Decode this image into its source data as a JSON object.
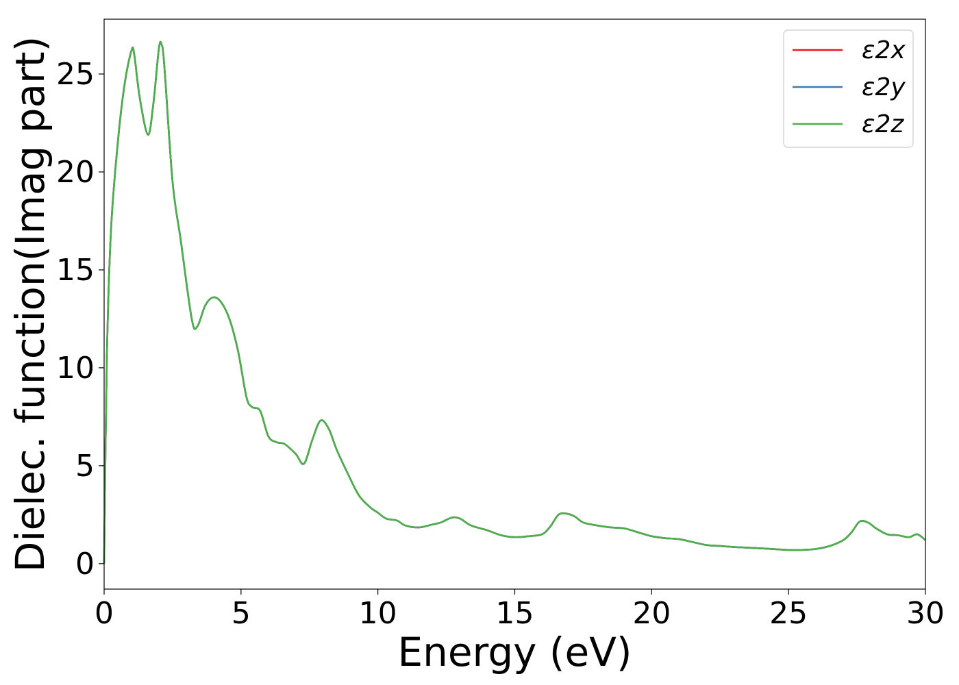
{
  "chart_data": {
    "type": "line",
    "xlabel": "Energy (eV)",
    "ylabel": "Dielec. function(Imag part)",
    "xlim": [
      0,
      30
    ],
    "ylim": [
      -1.3,
      27.8
    ],
    "xticks": [
      0,
      5,
      10,
      15,
      20,
      25,
      30
    ],
    "yticks": [
      0,
      5,
      10,
      15,
      20,
      25
    ],
    "legend_position": "top-right",
    "grid": false,
    "x": [
      0,
      0.1,
      0.25,
      0.5,
      0.75,
      1.0,
      1.1,
      1.3,
      1.6,
      1.8,
      2.0,
      2.1,
      2.2,
      2.5,
      2.8,
      3.2,
      3.4,
      3.7,
      4.0,
      4.3,
      4.6,
      4.9,
      5.2,
      5.4,
      5.7,
      6.0,
      6.3,
      6.6,
      7.0,
      7.3,
      7.6,
      7.9,
      8.2,
      8.5,
      8.9,
      9.3,
      9.7,
      10.0,
      10.3,
      10.7,
      11.0,
      11.5,
      12.0,
      12.3,
      12.7,
      13.0,
      13.4,
      14.0,
      14.5,
      15.0,
      15.5,
      16.0,
      16.3,
      16.6,
      16.9,
      17.2,
      17.5,
      18.0,
      18.5,
      19.0,
      19.5,
      20.0,
      20.5,
      21.0,
      21.5,
      22.0,
      22.5,
      23.0,
      24.0,
      25.0,
      25.5,
      26.0,
      26.5,
      27.0,
      27.3,
      27.6,
      27.9,
      28.2,
      28.6,
      29.0,
      29.4,
      29.7,
      30.0
    ],
    "series": [
      {
        "name": "ε2x",
        "color": "#e41a1c",
        "values": [
          0,
          10.5,
          17.0,
          21.5,
          24.5,
          26.2,
          26.0,
          23.8,
          21.9,
          23.5,
          26.3,
          26.5,
          25.4,
          19.5,
          16.5,
          12.5,
          12.1,
          13.2,
          13.6,
          13.3,
          12.4,
          10.8,
          8.5,
          8.0,
          7.8,
          6.5,
          6.2,
          6.1,
          5.6,
          5.1,
          6.3,
          7.3,
          6.9,
          5.8,
          4.6,
          3.5,
          2.9,
          2.6,
          2.3,
          2.2,
          1.95,
          1.85,
          2.0,
          2.1,
          2.35,
          2.3,
          1.95,
          1.7,
          1.45,
          1.35,
          1.4,
          1.5,
          1.9,
          2.5,
          2.55,
          2.4,
          2.1,
          1.95,
          1.85,
          1.8,
          1.6,
          1.4,
          1.3,
          1.25,
          1.1,
          0.95,
          0.9,
          0.85,
          0.78,
          0.7,
          0.7,
          0.75,
          0.9,
          1.2,
          1.6,
          2.15,
          2.1,
          1.8,
          1.5,
          1.45,
          1.35,
          1.5,
          1.2
        ]
      },
      {
        "name": "ε2y",
        "color": "#377eb8",
        "values": [
          0,
          10.5,
          17.0,
          21.5,
          24.5,
          26.2,
          26.0,
          23.8,
          21.9,
          23.5,
          26.3,
          26.5,
          25.4,
          19.5,
          16.5,
          12.5,
          12.1,
          13.2,
          13.6,
          13.3,
          12.4,
          10.8,
          8.5,
          8.0,
          7.8,
          6.5,
          6.2,
          6.1,
          5.6,
          5.1,
          6.3,
          7.3,
          6.9,
          5.8,
          4.6,
          3.5,
          2.9,
          2.6,
          2.3,
          2.2,
          1.95,
          1.85,
          2.0,
          2.1,
          2.35,
          2.3,
          1.95,
          1.7,
          1.45,
          1.35,
          1.4,
          1.5,
          1.9,
          2.5,
          2.55,
          2.4,
          2.1,
          1.95,
          1.85,
          1.8,
          1.6,
          1.4,
          1.3,
          1.25,
          1.1,
          0.95,
          0.9,
          0.85,
          0.78,
          0.7,
          0.7,
          0.75,
          0.9,
          1.2,
          1.6,
          2.15,
          2.1,
          1.8,
          1.5,
          1.45,
          1.35,
          1.5,
          1.2
        ]
      },
      {
        "name": "ε2z",
        "color": "#4daf4a",
        "values": [
          0,
          10.5,
          17.0,
          21.5,
          24.5,
          26.2,
          26.0,
          23.8,
          21.9,
          23.5,
          26.3,
          26.5,
          25.4,
          19.5,
          16.5,
          12.5,
          12.1,
          13.2,
          13.6,
          13.3,
          12.4,
          10.8,
          8.5,
          8.0,
          7.8,
          6.5,
          6.2,
          6.1,
          5.6,
          5.1,
          6.3,
          7.3,
          6.9,
          5.8,
          4.6,
          3.5,
          2.9,
          2.6,
          2.3,
          2.2,
          1.95,
          1.85,
          2.0,
          2.1,
          2.35,
          2.3,
          1.95,
          1.7,
          1.45,
          1.35,
          1.4,
          1.5,
          1.9,
          2.5,
          2.55,
          2.4,
          2.1,
          1.95,
          1.85,
          1.8,
          1.6,
          1.4,
          1.3,
          1.25,
          1.1,
          0.95,
          0.9,
          0.85,
          0.78,
          0.7,
          0.7,
          0.75,
          0.9,
          1.2,
          1.6,
          2.15,
          2.1,
          1.8,
          1.5,
          1.45,
          1.35,
          1.5,
          1.2
        ]
      }
    ]
  }
}
